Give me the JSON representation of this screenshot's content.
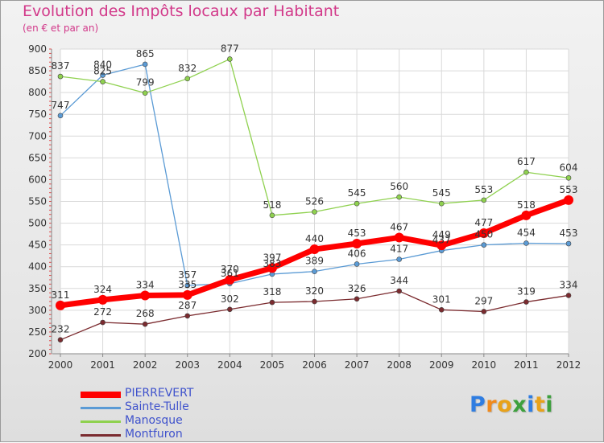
{
  "header": {
    "title": "Evolution des Impôts locaux par Habitant",
    "subtitle": "(en € et par an)"
  },
  "logo": {
    "text": "Proxiti",
    "letters": [
      "P",
      "r",
      "o",
      "x",
      "i",
      "t",
      "i"
    ],
    "colors": [
      "#2f7de1",
      "#f08a1c",
      "#e8a21a",
      "#3da03d",
      "#2f7de1",
      "#e8a21a",
      "#3da03d"
    ]
  },
  "chart_data": {
    "type": "line",
    "title": "Evolution des Impôts locaux par Habitant",
    "subtitle": "(en € et par an)",
    "xlabel": "",
    "ylabel": "",
    "ylim": [
      200,
      900
    ],
    "yticks": [
      200,
      250,
      300,
      350,
      400,
      450,
      500,
      550,
      600,
      650,
      700,
      750,
      800,
      850,
      900
    ],
    "categories": [
      "2000",
      "2001",
      "2002",
      "2003",
      "2004",
      "2005",
      "2006",
      "2007",
      "2008",
      "2009",
      "2010",
      "2011",
      "2012"
    ],
    "grid": true,
    "legend_position": "bottom-left",
    "series": [
      {
        "name": "Sainte-Tulle",
        "color": "#5b9bd5",
        "width": 1.3,
        "marker": 3,
        "values": [
          747,
          840,
          865,
          357,
          361,
          383,
          389,
          406,
          417,
          437,
          450,
          454,
          453
        ]
      },
      {
        "name": "Manosque",
        "color": "#8fd14f",
        "width": 1.3,
        "marker": 3,
        "values": [
          837,
          825,
          799,
          832,
          877,
          518,
          526,
          545,
          560,
          545,
          553,
          617,
          604
        ]
      },
      {
        "name": "Montfuron",
        "color": "#7b2b2f",
        "width": 1.3,
        "marker": 3,
        "values": [
          232,
          272,
          268,
          287,
          302,
          318,
          320,
          326,
          344,
          301,
          297,
          319,
          334
        ]
      },
      {
        "name": "PIERREVERT",
        "color": "#ff0000",
        "width": 7,
        "marker": 6,
        "values": [
          311,
          324,
          334,
          335,
          370,
          397,
          440,
          453,
          467,
          449,
          477,
          518,
          553
        ]
      }
    ],
    "legend_order": [
      "PIERREVERT",
      "Sainte-Tulle",
      "Manosque",
      "Montfuron"
    ]
  }
}
